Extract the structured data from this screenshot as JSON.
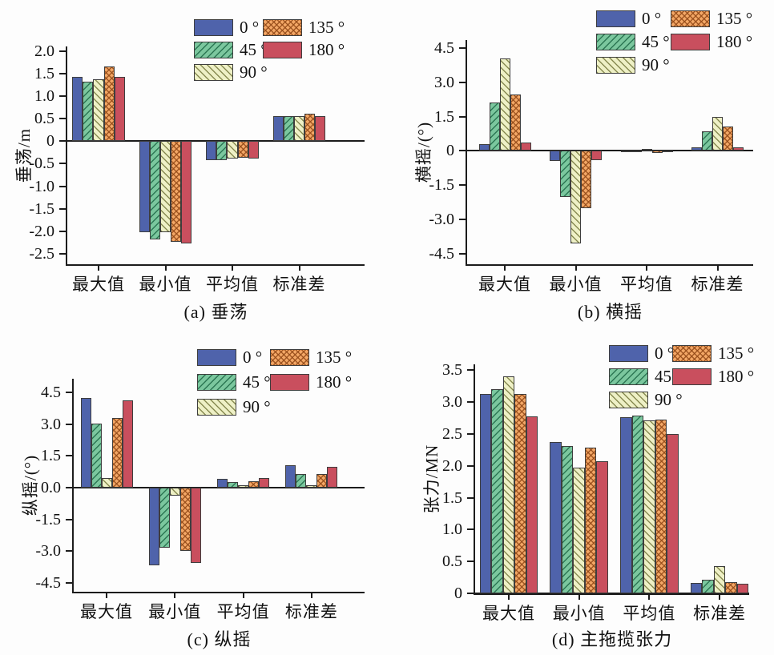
{
  "figure": {
    "background": "#fdfdfd",
    "categories": [
      "最大值",
      "最小值",
      "平均值",
      "标准差"
    ],
    "legend_labels": [
      "0 °",
      "45 °",
      "90 °",
      "135 °",
      "180 °"
    ],
    "series_colors": [
      "#4f63ab",
      "#7bc79e",
      "#eef0c6",
      "#f3a766",
      "#c94f5e"
    ]
  },
  "chart_data": [
    {
      "type": "bar",
      "panel": "a",
      "title": "(a) 垂荡",
      "ylabel": "垂荡/m",
      "xlabel": "",
      "categories": [
        "最大值",
        "最小值",
        "平均值",
        "标准差"
      ],
      "ylim": [
        -2.5,
        2.0
      ],
      "ytick_values": [
        2.0,
        1.5,
        1.0,
        0.5,
        0,
        -0.5,
        -1.0,
        -1.5,
        -2.0,
        -2.5
      ],
      "ytick_labels": [
        "2.0",
        "1.5",
        "1.0",
        "0.5",
        "0",
        "-0.5",
        "-1.0",
        "-1.5",
        "-2.0",
        "-2.5"
      ],
      "legend_position": "top",
      "grid": false,
      "series": [
        {
          "name": "0 °",
          "hatch": "solid",
          "color": "#4f63ab",
          "values": [
            1.43,
            -2.02,
            -0.43,
            0.56
          ]
        },
        {
          "name": "45 °",
          "hatch": "diagonal-up",
          "color": "#7bc79e",
          "values": [
            1.31,
            -2.18,
            -0.42,
            0.56
          ]
        },
        {
          "name": "90 °",
          "hatch": "diagonal-down",
          "color": "#eef0c6",
          "values": [
            1.38,
            -2.02,
            -0.38,
            0.55
          ]
        },
        {
          "name": "135 °",
          "hatch": "crosshatch",
          "color": "#f3a766",
          "values": [
            1.65,
            -2.23,
            -0.36,
            0.61
          ]
        },
        {
          "name": "180 °",
          "hatch": "solid",
          "color": "#c94f5e",
          "values": [
            1.43,
            -2.27,
            -0.38,
            0.56
          ]
        }
      ]
    },
    {
      "type": "bar",
      "panel": "b",
      "title": "(b) 横摇",
      "ylabel": "横摇/(°)",
      "xlabel": "",
      "categories": [
        "最大值",
        "最小值",
        "平均值",
        "标准差"
      ],
      "ylim": [
        -4.5,
        4.5
      ],
      "ytick_values": [
        4.5,
        3.0,
        1.5,
        0,
        -1.5,
        -3.0,
        -4.5
      ],
      "ytick_labels": [
        "4.5",
        "3.0",
        "1.5",
        "0",
        "-1.5",
        "-3.0",
        "-4.5"
      ],
      "legend_position": "top",
      "grid": false,
      "series": [
        {
          "name": "0 °",
          "hatch": "solid",
          "color": "#4f63ab",
          "values": [
            0.31,
            -0.45,
            -0.04,
            0.14
          ]
        },
        {
          "name": "45 °",
          "hatch": "diagonal-up",
          "color": "#7bc79e",
          "values": [
            2.1,
            -2.03,
            -0.04,
            0.84
          ]
        },
        {
          "name": "90 °",
          "hatch": "diagonal-down",
          "color": "#eef0c6",
          "values": [
            4.06,
            -4.06,
            0.08,
            1.5
          ]
        },
        {
          "name": "135 °",
          "hatch": "crosshatch",
          "color": "#f3a766",
          "values": [
            2.48,
            -2.5,
            -0.09,
            1.05
          ]
        },
        {
          "name": "180 °",
          "hatch": "solid",
          "color": "#c94f5e",
          "values": [
            0.38,
            -0.4,
            -0.04,
            0.17
          ]
        }
      ]
    },
    {
      "type": "bar",
      "panel": "c",
      "title": "(c) 纵摇",
      "ylabel": "纵摇/(°)",
      "xlabel": "",
      "categories": [
        "最大值",
        "最小值",
        "平均值",
        "标准差"
      ],
      "ylim": [
        -4.5,
        4.5
      ],
      "ytick_values": [
        4.5,
        3.0,
        1.5,
        0,
        -1.5,
        -3.0,
        -4.5
      ],
      "ytick_labels": [
        "4.5",
        "3.0",
        "1.5",
        "0.0",
        "-1.5",
        "-3.0",
        "-4.5"
      ],
      "legend_position": "top",
      "grid": false,
      "series": [
        {
          "name": "0 °",
          "hatch": "solid",
          "color": "#4f63ab",
          "values": [
            4.24,
            -3.67,
            0.4,
            1.06
          ]
        },
        {
          "name": "45 °",
          "hatch": "diagonal-up",
          "color": "#7bc79e",
          "values": [
            3.03,
            -2.84,
            0.28,
            0.64
          ]
        },
        {
          "name": "90 °",
          "hatch": "diagonal-down",
          "color": "#eef0c6",
          "values": [
            0.46,
            -0.4,
            0.1,
            0.1
          ]
        },
        {
          "name": "135 °",
          "hatch": "crosshatch",
          "color": "#f3a766",
          "values": [
            3.3,
            -3.0,
            0.31,
            0.64
          ]
        },
        {
          "name": "180 °",
          "hatch": "solid",
          "color": "#c94f5e",
          "values": [
            4.13,
            -3.55,
            0.45,
            0.98
          ]
        }
      ]
    },
    {
      "type": "bar",
      "panel": "d",
      "title": "(d) 主拖揽张力",
      "ylabel": "张力/MN",
      "xlabel": "",
      "categories": [
        "最大值",
        "最小值",
        "平均值",
        "标准差"
      ],
      "ylim": [
        0,
        3.5
      ],
      "ytick_values": [
        3.5,
        3.0,
        2.5,
        2.0,
        1.5,
        1.0,
        0.5,
        0
      ],
      "ytick_labels": [
        "3.5",
        "3.0",
        "2.5",
        "2.0",
        "1.5",
        "1.0",
        "0.5",
        "0"
      ],
      "legend_position": "top",
      "grid": false,
      "series": [
        {
          "name": "0 °",
          "hatch": "solid",
          "color": "#4f63ab",
          "values": [
            3.12,
            2.37,
            2.76,
            0.16
          ]
        },
        {
          "name": "45 °",
          "hatch": "diagonal-up",
          "color": "#7bc79e",
          "values": [
            3.2,
            2.31,
            2.79,
            0.21
          ]
        },
        {
          "name": "90 °",
          "hatch": "diagonal-down",
          "color": "#eef0c6",
          "values": [
            3.4,
            1.97,
            2.71,
            0.43
          ]
        },
        {
          "name": "135 °",
          "hatch": "crosshatch",
          "color": "#f3a766",
          "values": [
            3.12,
            2.29,
            2.73,
            0.18
          ]
        },
        {
          "name": "180 °",
          "hatch": "solid",
          "color": "#c94f5e",
          "values": [
            2.77,
            2.07,
            2.5,
            0.15
          ]
        }
      ]
    }
  ]
}
